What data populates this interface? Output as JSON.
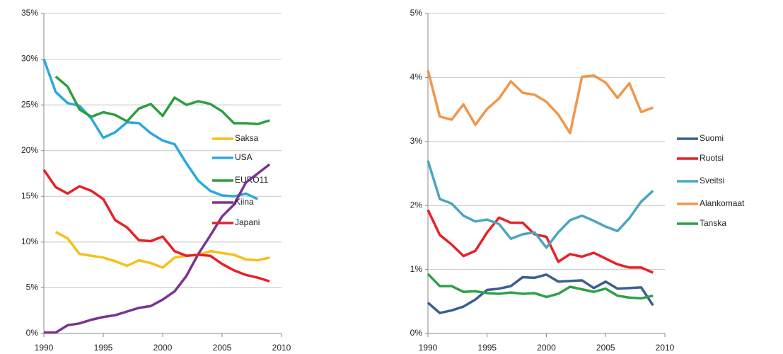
{
  "chart_data": [
    {
      "type": "line",
      "x": [
        1990,
        1991,
        1992,
        1993,
        1994,
        1995,
        1996,
        1997,
        1998,
        1999,
        2000,
        2001,
        2002,
        2003,
        2004,
        2005,
        2006,
        2007,
        2008,
        2009
      ],
      "xlim": [
        1990,
        2010
      ],
      "xticks": [
        1990,
        1995,
        2000,
        2005,
        2010
      ],
      "ylim": [
        0,
        35
      ],
      "yticks": [
        {
          "value": 0,
          "label": "0%"
        },
        {
          "value": 5,
          "label": "5%"
        },
        {
          "value": 10,
          "label": "10%"
        },
        {
          "value": 15,
          "label": "15%"
        },
        {
          "value": 20,
          "label": "20%"
        },
        {
          "value": 25,
          "label": "25%"
        },
        {
          "value": 30,
          "label": "30%"
        },
        {
          "value": 35,
          "label": "35%"
        }
      ],
      "grid": true,
      "legend": "right",
      "series": [
        {
          "name": "Saksa",
          "color": "#f5c018",
          "values": [
            null,
            11.1,
            10.4,
            8.7,
            8.5,
            8.3,
            7.9,
            7.4,
            8.0,
            7.7,
            7.2,
            8.3,
            8.5,
            8.6,
            9.0,
            8.8,
            8.6,
            8.1,
            8.0,
            8.3
          ]
        },
        {
          "name": "USA",
          "color": "#2aa8e0",
          "values": [
            30.0,
            26.4,
            25.2,
            24.9,
            23.5,
            21.4,
            22.0,
            23.1,
            23.0,
            21.9,
            21.1,
            20.7,
            18.6,
            16.7,
            15.6,
            15.1,
            15.0,
            15.3,
            14.7,
            null
          ]
        },
        {
          "name": "EURO11",
          "color": "#2e9e40",
          "values": [
            null,
            28.1,
            27.0,
            24.5,
            23.7,
            24.2,
            23.9,
            23.2,
            24.6,
            25.1,
            23.8,
            25.8,
            25.0,
            25.4,
            25.1,
            24.3,
            23.0,
            23.0,
            22.9,
            23.3
          ]
        },
        {
          "name": "Kiina",
          "color": "#7b3294",
          "values": [
            0.1,
            0.1,
            0.9,
            1.1,
            1.5,
            1.8,
            2.0,
            2.4,
            2.8,
            3.0,
            3.7,
            4.6,
            6.3,
            8.7,
            10.7,
            12.8,
            14.1,
            16.5,
            17.5,
            18.5
          ]
        },
        {
          "name": "Japani",
          "color": "#e52228",
          "values": [
            17.9,
            16.0,
            15.3,
            16.1,
            15.6,
            14.7,
            12.4,
            11.6,
            10.2,
            10.1,
            10.6,
            9.0,
            8.5,
            8.6,
            8.5,
            7.6,
            6.9,
            6.4,
            6.1,
            5.7
          ]
        }
      ]
    },
    {
      "type": "line",
      "x": [
        1990,
        1991,
        1992,
        1993,
        1994,
        1995,
        1996,
        1997,
        1998,
        1999,
        2000,
        2001,
        2002,
        2003,
        2004,
        2005,
        2006,
        2007,
        2008,
        2009
      ],
      "xlim": [
        1990,
        2010
      ],
      "xticks": [
        1990,
        1995,
        2000,
        2005,
        2010
      ],
      "ylim": [
        0,
        5
      ],
      "yticks": [
        {
          "value": 0,
          "label": "0%"
        },
        {
          "value": 1,
          "label": "1%"
        },
        {
          "value": 2,
          "label": "2%"
        },
        {
          "value": 3,
          "label": "3%"
        },
        {
          "value": 4,
          "label": "4%"
        },
        {
          "value": 5,
          "label": "5%"
        }
      ],
      "grid": true,
      "legend": "right",
      "series": [
        {
          "name": "Suomi",
          "color": "#3a5f8f",
          "values": [
            0.48,
            0.32,
            0.36,
            0.42,
            0.53,
            0.68,
            0.7,
            0.74,
            0.88,
            0.87,
            0.92,
            0.81,
            0.82,
            0.83,
            0.71,
            0.81,
            0.7,
            0.71,
            0.72,
            0.44
          ]
        },
        {
          "name": "Ruotsi",
          "color": "#e52228",
          "values": [
            1.93,
            1.54,
            1.39,
            1.21,
            1.29,
            1.58,
            1.81,
            1.73,
            1.73,
            1.55,
            1.51,
            1.12,
            1.24,
            1.2,
            1.26,
            1.17,
            1.08,
            1.03,
            1.03,
            0.95
          ]
        },
        {
          "name": "Sveitsi",
          "color": "#4ba5c0",
          "values": [
            2.7,
            2.1,
            2.03,
            1.84,
            1.75,
            1.78,
            1.71,
            1.48,
            1.55,
            1.58,
            1.34,
            1.58,
            1.77,
            1.84,
            1.76,
            1.67,
            1.6,
            1.8,
            2.06,
            2.23
          ]
        },
        {
          "name": "Alankomaat",
          "color": "#f0964a",
          "values": [
            4.11,
            3.39,
            3.34,
            3.58,
            3.26,
            3.51,
            3.67,
            3.94,
            3.76,
            3.73,
            3.62,
            3.42,
            3.13,
            4.01,
            4.03,
            3.92,
            3.68,
            3.91,
            3.46,
            3.53
          ]
        },
        {
          "name": "Tanska",
          "color": "#2ea04a",
          "values": [
            0.93,
            0.74,
            0.74,
            0.65,
            0.66,
            0.63,
            0.62,
            0.64,
            0.62,
            0.63,
            0.57,
            0.62,
            0.73,
            0.69,
            0.65,
            0.7,
            0.59,
            0.56,
            0.55,
            0.59
          ]
        }
      ]
    }
  ]
}
